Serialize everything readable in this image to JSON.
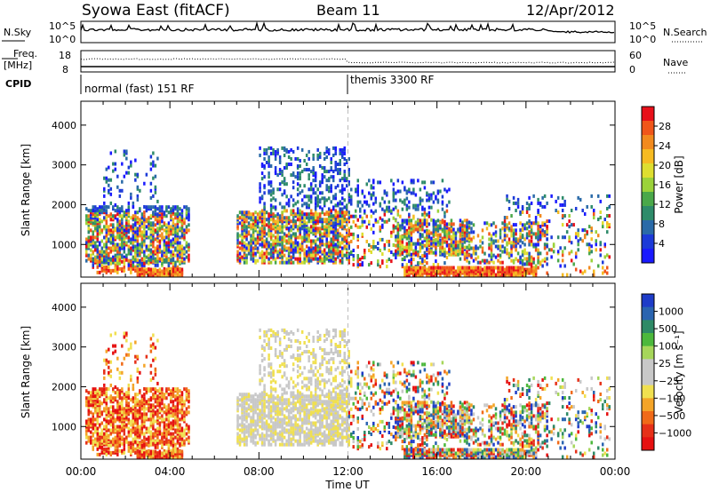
{
  "header": {
    "title": "Syowa East (fitACF)",
    "beam": "Beam 11",
    "date": "12/Apr/2012"
  },
  "noise_panel": {
    "left_label": "N.Sky",
    "left_ticks": [
      "10^5",
      "10^0"
    ],
    "right_ticks": [
      "10^5",
      "10^0"
    ],
    "right_label": "N.Search"
  },
  "freq_panel": {
    "left_label_top": "Freq.",
    "left_label_unit": "[MHz]",
    "left_ticks": [
      "18",
      "8"
    ],
    "right_ticks": [
      "60",
      "0"
    ],
    "right_label": "Nave"
  },
  "cpid": {
    "label": "CPID",
    "segments": [
      {
        "start_hour": 0,
        "text": "normal (fast) 151 RF"
      },
      {
        "start_hour": 12,
        "text": "themis 3300 RF"
      }
    ]
  },
  "power_colorbar": {
    "label": "Power [dB]",
    "ticks": [
      "28",
      "24",
      "20",
      "16",
      "12",
      "8",
      "4"
    ],
    "colors": [
      "#e8101a",
      "#f0561a",
      "#f28a1e",
      "#f6bb22",
      "#dede30",
      "#9bd23a",
      "#4aa84a",
      "#2e8b6a",
      "#2a6aa8",
      "#1c3ad8",
      "#1a1aff"
    ]
  },
  "velocity_colorbar": {
    "label": "Velocity [m s⁻¹]",
    "ticks": [
      "1000",
      "500",
      "100",
      "25",
      "−25",
      "−100",
      "−500",
      "−1000"
    ],
    "colors": [
      "#1e3cc8",
      "#2a64b0",
      "#2e8a66",
      "#4cb83c",
      "#a6d65a",
      "#c8c8c8",
      "#c8c8c8",
      "#f0e050",
      "#f4a428",
      "#f06a18",
      "#e63018",
      "#e61010"
    ]
  },
  "chart_data": [
    {
      "type": "heatmap",
      "title": "Power",
      "ylabel": "Slant Range [km]",
      "xlabel": "",
      "x_ticks": [
        "00:00",
        "04:00",
        "08:00",
        "12:00",
        "16:00",
        "20:00",
        "00:00"
      ],
      "y_ticks": [
        "1000",
        "2000",
        "3000",
        "4000"
      ],
      "xlim_hours": [
        0,
        24
      ],
      "ylim_km": [
        180,
        4600
      ],
      "colorbar_range_db": [
        0,
        30
      ]
    },
    {
      "type": "heatmap",
      "title": "Velocity",
      "ylabel": "Slant Range [km]",
      "xlabel": "Time UT",
      "x_ticks": [
        "00:00",
        "04:00",
        "08:00",
        "12:00",
        "16:00",
        "20:00",
        "00:00"
      ],
      "y_ticks": [
        "1000",
        "2000",
        "3000",
        "4000"
      ],
      "xlim_hours": [
        0,
        24
      ],
      "ylim_km": [
        180,
        4600
      ],
      "colorbar_range_ms": [
        -1200,
        1200
      ]
    }
  ]
}
